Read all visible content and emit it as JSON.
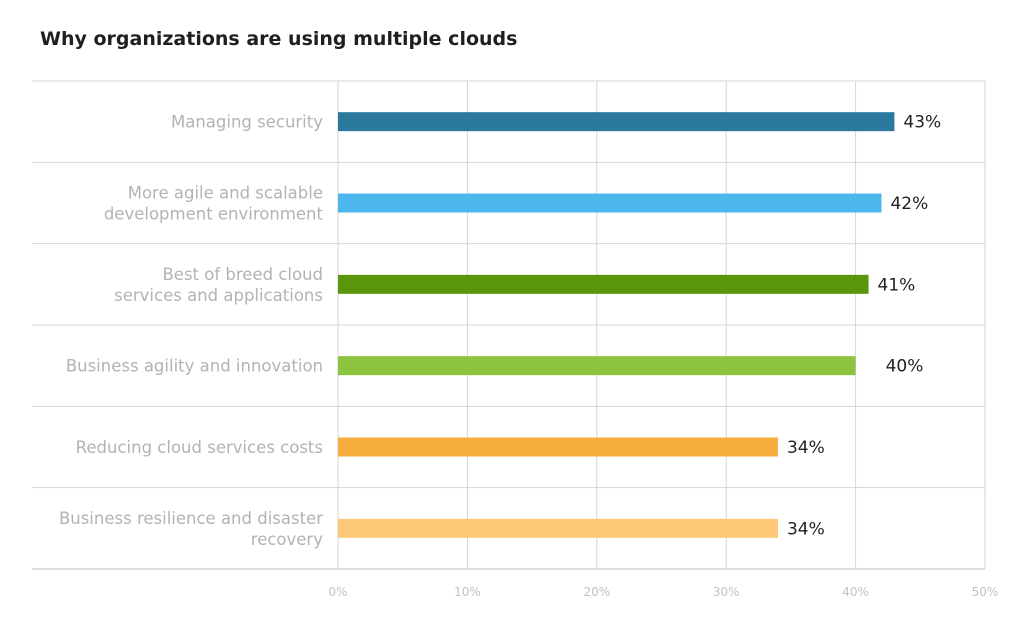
{
  "chart_data": {
    "type": "bar",
    "orientation": "horizontal",
    "title": "Why organizations are using multiple clouds",
    "categories": [
      [
        "Managing security"
      ],
      [
        "More agile and scalable",
        "development environment"
      ],
      [
        "Best of breed cloud",
        "services and applications"
      ],
      [
        "Business agility and innovation"
      ],
      [
        "Reducing cloud services costs"
      ],
      [
        "Business resilience and disaster",
        "recovery"
      ]
    ],
    "values": [
      43,
      42,
      41,
      40,
      34,
      34
    ],
    "value_labels": [
      "43%",
      "42%",
      "41%",
      "40%",
      "34%",
      "34%"
    ],
    "colors": [
      "#2b7a9e",
      "#4db6ec",
      "#5a950a",
      "#8cc43f",
      "#f7ad3e",
      "#fdc877"
    ],
    "xlim": [
      0,
      50
    ],
    "x_ticks": [
      0,
      10,
      20,
      30,
      40,
      50
    ],
    "x_tick_labels": [
      "0%",
      "10%",
      "20%",
      "30%",
      "40%",
      "50%"
    ],
    "grid": true,
    "legend": "none"
  }
}
